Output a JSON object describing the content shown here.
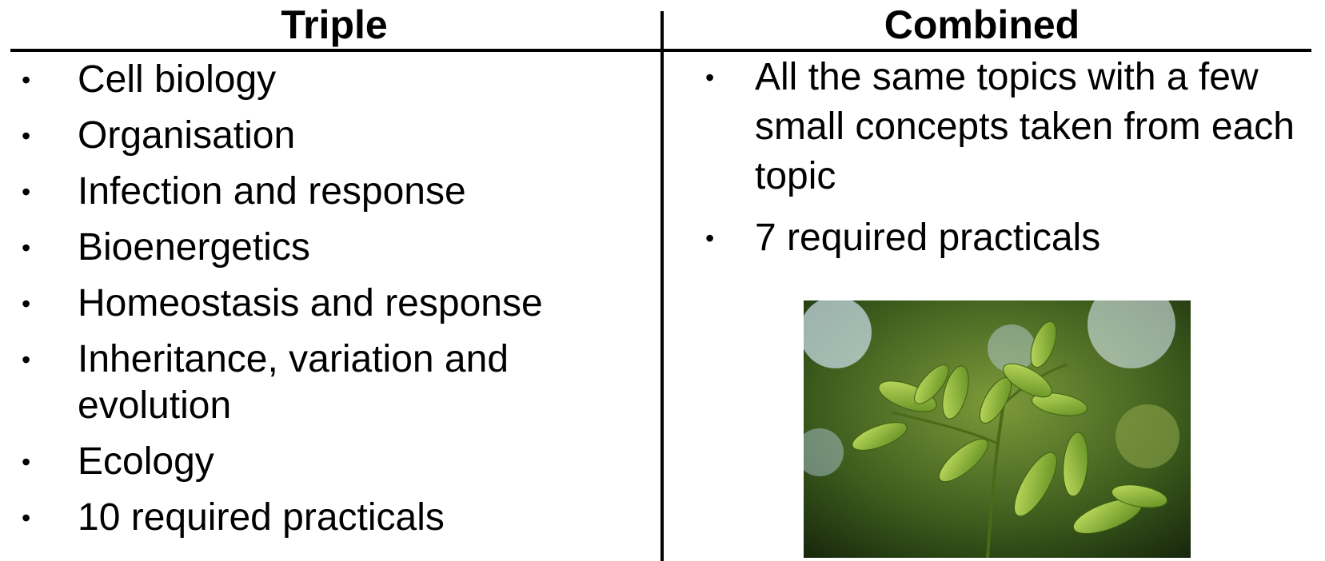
{
  "columns": [
    {
      "heading": "Triple",
      "items": [
        "Cell biology",
        "Organisation",
        "Infection and response",
        "Bioenergetics",
        "Homeostasis and response",
        "Inheritance, variation and evolution",
        "Ecology",
        "10 required practicals"
      ]
    },
    {
      "heading": "Combined",
      "items": [
        "All the same topics with a few small concepts taken from each topic",
        "7 required practicals"
      ]
    }
  ]
}
